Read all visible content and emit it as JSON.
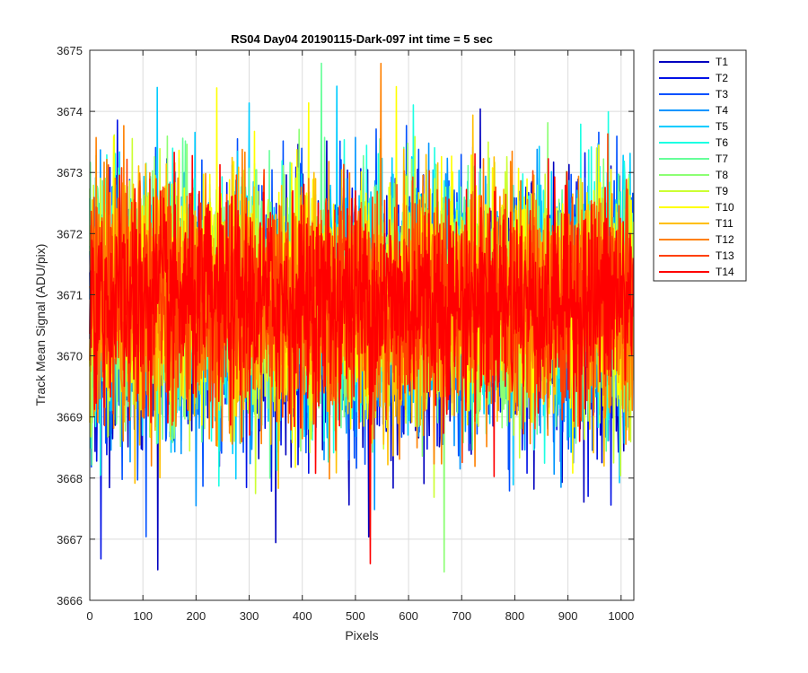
{
  "chart_data": {
    "type": "line",
    "title": "RS04 Day04 20190115-Dark-097 int time = 5 sec",
    "xlabel": "Pixels",
    "ylabel": "Track Mean Signal (ADU/pix)",
    "xlim": [
      0,
      1024
    ],
    "ylim": [
      3666,
      3675
    ],
    "xticks": [
      0,
      100,
      200,
      300,
      400,
      500,
      600,
      700,
      800,
      900,
      1000
    ],
    "yticks": [
      3666,
      3667,
      3668,
      3669,
      3670,
      3671,
      3672,
      3673,
      3674,
      3675
    ],
    "grid": true,
    "legend_position": "outside-top-right",
    "n_points_per_series": 1024,
    "series": [
      {
        "name": "T1",
        "color": "#0000BF",
        "mean": 3670.6,
        "std": 1.05
      },
      {
        "name": "T2",
        "color": "#0010E6",
        "mean": 3670.7,
        "std": 1.0
      },
      {
        "name": "T3",
        "color": "#0050FF",
        "mean": 3670.8,
        "std": 1.0
      },
      {
        "name": "T4",
        "color": "#0095FF",
        "mean": 3670.8,
        "std": 0.98
      },
      {
        "name": "T5",
        "color": "#00CCFF",
        "mean": 3670.9,
        "std": 0.98
      },
      {
        "name": "T6",
        "color": "#1CFFE3",
        "mean": 3670.9,
        "std": 0.97
      },
      {
        "name": "T7",
        "color": "#66FF99",
        "mean": 3670.9,
        "std": 0.96
      },
      {
        "name": "T8",
        "color": "#8CFF73",
        "mean": 3670.9,
        "std": 0.96
      },
      {
        "name": "T9",
        "color": "#CCFF33",
        "mean": 3670.9,
        "std": 0.95
      },
      {
        "name": "T10",
        "color": "#FFFF00",
        "mean": 3671.0,
        "std": 0.95
      },
      {
        "name": "T11",
        "color": "#FFBF00",
        "mean": 3670.8,
        "std": 0.95
      },
      {
        "name": "T12",
        "color": "#FF8000",
        "mean": 3670.8,
        "std": 0.93
      },
      {
        "name": "T13",
        "color": "#FF4000",
        "mean": 3670.9,
        "std": 0.9
      },
      {
        "name": "T14",
        "color": "#FF0000",
        "mean": 3670.9,
        "std": 0.85
      }
    ],
    "annotations": {
      "notable_min_T1": {
        "x": 128,
        "y": 3666.5
      },
      "notable_min_T14": {
        "x": 528,
        "y": 3666.6
      }
    }
  }
}
